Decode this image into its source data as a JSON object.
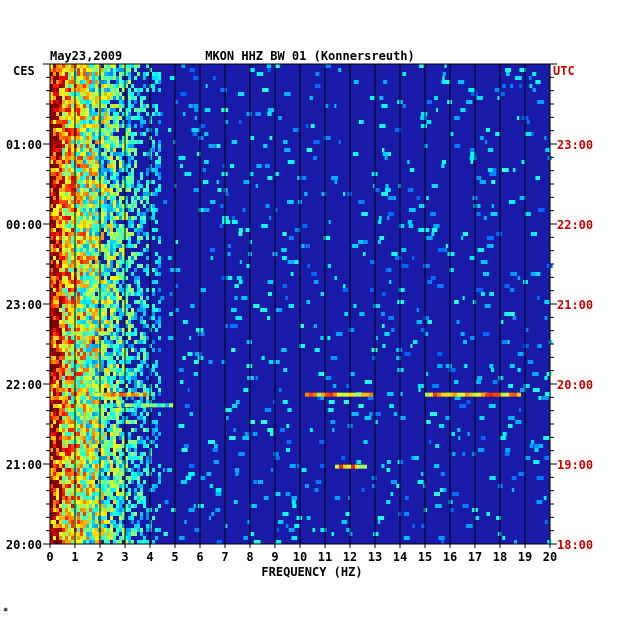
{
  "chart_data": {
    "type": "heatmap",
    "title": "MKON HHZ BW 01 (Konnersreuth)",
    "date": "May23,2009",
    "xlabel": "FREQUENCY (HZ)",
    "xlim": [
      0,
      20
    ],
    "x_ticks": [
      "0",
      "1",
      "2",
      "3",
      "4",
      "5",
      "6",
      "7",
      "8",
      "9",
      "10",
      "11",
      "12",
      "13",
      "14",
      "15",
      "16",
      "17",
      "18",
      "19",
      "20"
    ],
    "left_axis_label": "CES",
    "right_axis_label": "UTC",
    "left_ticks": [
      "01:00",
      "00:00",
      "23:00",
      "22:00",
      "21:00",
      "20:00"
    ],
    "right_ticks": [
      "23:00",
      "22:00",
      "21:00",
      "20:00",
      "19:00",
      "18:00"
    ],
    "time_range_utc": [
      "18:00",
      "24:00"
    ],
    "colors": {
      "background": "#1a1aa8",
      "left_axis_text": "#000000",
      "right_axis_text": "#cc0000",
      "gridline": "#000000"
    },
    "events": [
      {
        "time_utc": "19:52",
        "freq_hz": [
          1.8,
          3.8
        ],
        "intensity": "high"
      },
      {
        "time_utc": "19:52",
        "freq_hz": [
          10.2,
          12.8
        ],
        "intensity": "high"
      },
      {
        "time_utc": "19:52",
        "freq_hz": [
          15.0,
          18.8
        ],
        "intensity": "high"
      },
      {
        "time_utc": "19:44",
        "freq_hz": [
          2.2,
          4.8
        ],
        "intensity": "medium"
      },
      {
        "time_utc": "18:58",
        "freq_hz": [
          11.4,
          12.6
        ],
        "intensity": "high"
      },
      {
        "time_utc": "20:38",
        "freq_hz": [
          0.5,
          2.3
        ],
        "intensity": "medium"
      }
    ]
  },
  "footer_mark": "*"
}
